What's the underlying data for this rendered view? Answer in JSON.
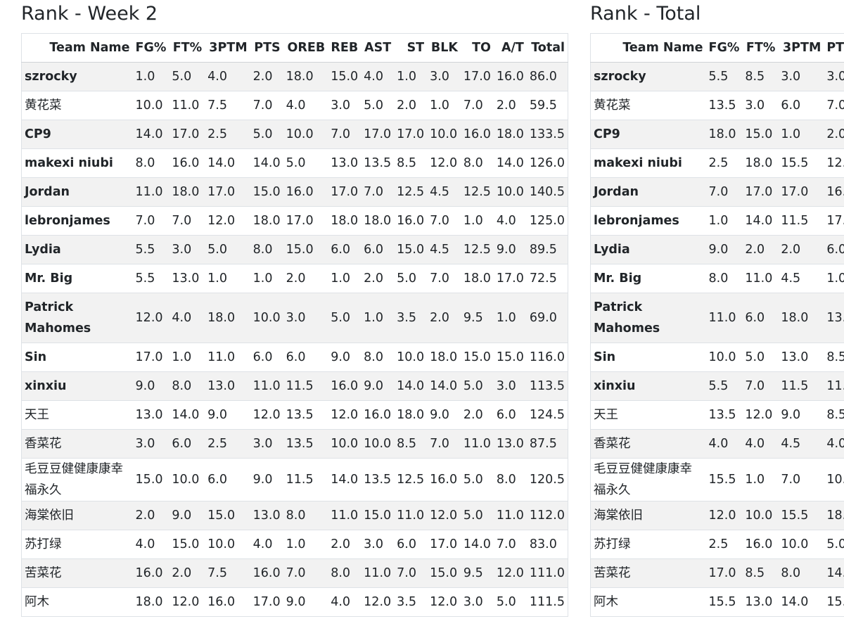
{
  "week": {
    "title": "Rank - Week 2",
    "columns": [
      "Team Name",
      "FG%",
      "FT%",
      "3PTM",
      "PTS",
      "OREB",
      "REB",
      "AST",
      "ST",
      "BLK",
      "TO",
      "A/T",
      "Total"
    ],
    "rows": [
      [
        "szrocky",
        "1.0",
        "5.0",
        "4.0",
        "2.0",
        "18.0",
        "15.0",
        "4.0",
        "1.0",
        "3.0",
        "17.0",
        "16.0",
        "86.0"
      ],
      [
        "黄花菜",
        "10.0",
        "11.0",
        "7.5",
        "7.0",
        "4.0",
        "3.0",
        "5.0",
        "2.0",
        "1.0",
        "7.0",
        "2.0",
        "59.5"
      ],
      [
        "CP9",
        "14.0",
        "17.0",
        "2.5",
        "5.0",
        "10.0",
        "7.0",
        "17.0",
        "17.0",
        "10.0",
        "16.0",
        "18.0",
        "133.5"
      ],
      [
        "makexi niubi",
        "8.0",
        "16.0",
        "14.0",
        "14.0",
        "5.0",
        "13.0",
        "13.5",
        "8.5",
        "12.0",
        "8.0",
        "14.0",
        "126.0"
      ],
      [
        "Jordan",
        "11.0",
        "18.0",
        "17.0",
        "15.0",
        "16.0",
        "17.0",
        "7.0",
        "12.5",
        "4.5",
        "12.5",
        "10.0",
        "140.5"
      ],
      [
        "lebronjames",
        "7.0",
        "7.0",
        "12.0",
        "18.0",
        "17.0",
        "18.0",
        "18.0",
        "16.0",
        "7.0",
        "1.0",
        "4.0",
        "125.0"
      ],
      [
        "Lydia",
        "5.5",
        "3.0",
        "5.0",
        "8.0",
        "15.0",
        "6.0",
        "6.0",
        "15.0",
        "4.5",
        "12.5",
        "9.0",
        "89.5"
      ],
      [
        "Mr. Big",
        "5.5",
        "13.0",
        "1.0",
        "1.0",
        "2.0",
        "1.0",
        "2.0",
        "5.0",
        "7.0",
        "18.0",
        "17.0",
        "72.5"
      ],
      [
        "Patrick Mahomes",
        "12.0",
        "4.0",
        "18.0",
        "10.0",
        "3.0",
        "5.0",
        "1.0",
        "3.5",
        "2.0",
        "9.5",
        "1.0",
        "69.0"
      ],
      [
        "Sin",
        "17.0",
        "1.0",
        "11.0",
        "6.0",
        "6.0",
        "9.0",
        "8.0",
        "10.0",
        "18.0",
        "15.0",
        "15.0",
        "116.0"
      ],
      [
        "xinxiu",
        "9.0",
        "8.0",
        "13.0",
        "11.0",
        "11.5",
        "16.0",
        "9.0",
        "14.0",
        "14.0",
        "5.0",
        "3.0",
        "113.5"
      ],
      [
        "天王",
        "13.0",
        "14.0",
        "9.0",
        "12.0",
        "13.5",
        "12.0",
        "16.0",
        "18.0",
        "9.0",
        "2.0",
        "6.0",
        "124.5"
      ],
      [
        "香菜花",
        "3.0",
        "6.0",
        "2.5",
        "3.0",
        "13.5",
        "10.0",
        "10.0",
        "8.5",
        "7.0",
        "11.0",
        "13.0",
        "87.5"
      ],
      [
        "毛豆豆健健康康幸福永久",
        "15.0",
        "10.0",
        "6.0",
        "9.0",
        "11.5",
        "14.0",
        "13.5",
        "12.5",
        "16.0",
        "5.0",
        "8.0",
        "120.5"
      ],
      [
        "海棠依旧",
        "2.0",
        "9.0",
        "15.0",
        "13.0",
        "8.0",
        "11.0",
        "15.0",
        "11.0",
        "12.0",
        "5.0",
        "11.0",
        "112.0"
      ],
      [
        "苏打绿",
        "4.0",
        "15.0",
        "10.0",
        "4.0",
        "1.0",
        "2.0",
        "3.0",
        "6.0",
        "17.0",
        "14.0",
        "7.0",
        "83.0"
      ],
      [
        "苦菜花",
        "16.0",
        "2.0",
        "7.5",
        "16.0",
        "7.0",
        "8.0",
        "11.0",
        "7.0",
        "15.0",
        "9.5",
        "12.0",
        "111.0"
      ],
      [
        "阿木",
        "18.0",
        "12.0",
        "16.0",
        "17.0",
        "9.0",
        "4.0",
        "12.0",
        "3.5",
        "12.0",
        "3.0",
        "5.0",
        "111.5"
      ]
    ]
  },
  "total": {
    "title": "Rank - Total",
    "columns": [
      "Team Name",
      "FG%",
      "FT%",
      "3PTM",
      "PT"
    ],
    "rows": [
      [
        "szrocky",
        "5.5",
        "8.5",
        "3.0",
        "3.0"
      ],
      [
        "黄花菜",
        "13.5",
        "3.0",
        "6.0",
        "7.0"
      ],
      [
        "CP9",
        "18.0",
        "15.0",
        "1.0",
        "2.0"
      ],
      [
        "makexi niubi",
        "2.5",
        "18.0",
        "15.5",
        "12."
      ],
      [
        "Jordan",
        "7.0",
        "17.0",
        "17.0",
        "16."
      ],
      [
        "lebronjames",
        "1.0",
        "14.0",
        "11.5",
        "17."
      ],
      [
        "Lydia",
        "9.0",
        "2.0",
        "2.0",
        "6.0"
      ],
      [
        "Mr. Big",
        "8.0",
        "11.0",
        "4.5",
        "1.0"
      ],
      [
        "Patrick Mahomes",
        "11.0",
        "6.0",
        "18.0",
        "13."
      ],
      [
        "Sin",
        "10.0",
        "5.0",
        "13.0",
        "8.5"
      ],
      [
        "xinxiu",
        "5.5",
        "7.0",
        "11.5",
        "11."
      ],
      [
        "天王",
        "13.5",
        "12.0",
        "9.0",
        "8.5"
      ],
      [
        "香菜花",
        "4.0",
        "4.0",
        "4.5",
        "4.0"
      ],
      [
        "毛豆豆健健康康幸福永久",
        "15.5",
        "1.0",
        "7.0",
        "10."
      ],
      [
        "海棠依旧",
        "12.0",
        "10.0",
        "15.5",
        "18."
      ],
      [
        "苏打绿",
        "2.5",
        "16.0",
        "10.0",
        "5.0"
      ],
      [
        "苦菜花",
        "17.0",
        "8.5",
        "8.0",
        "14."
      ],
      [
        "阿木",
        "15.5",
        "13.0",
        "14.0",
        "15."
      ]
    ]
  }
}
